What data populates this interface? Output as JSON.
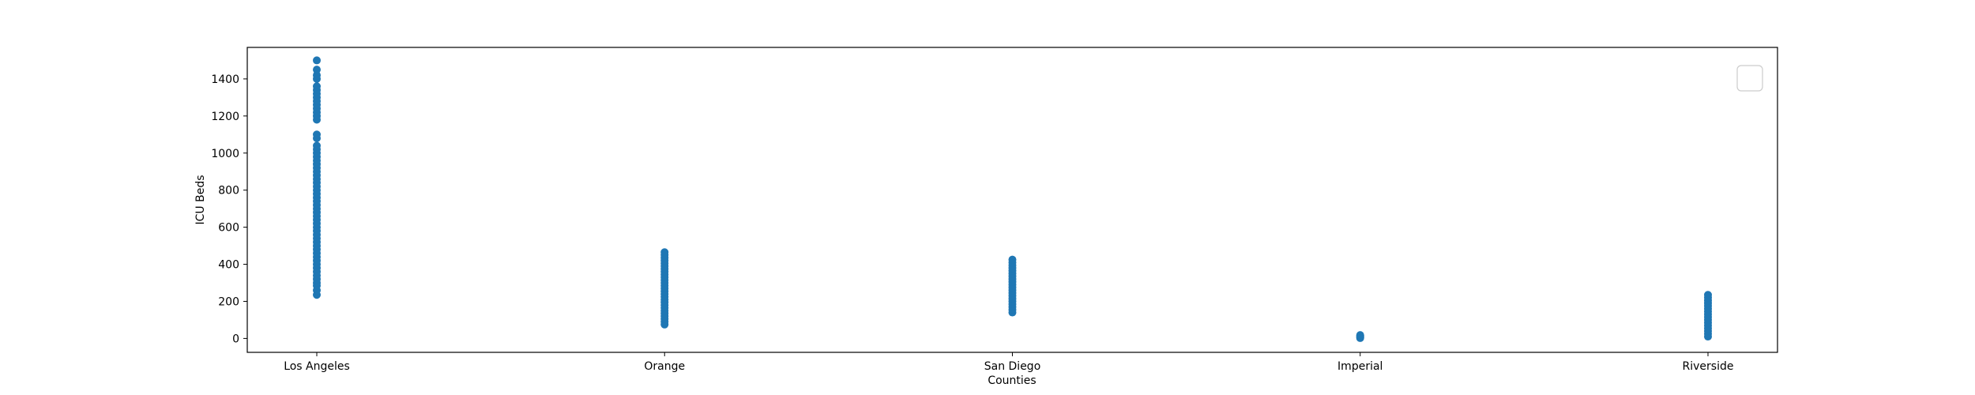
{
  "chart_data": {
    "type": "scatter",
    "xlabel": "Counties",
    "ylabel": "ICU Beds",
    "categories": [
      "Los Angeles",
      "Orange",
      "San Diego",
      "Imperial",
      "Riverside"
    ],
    "ylim": [
      -75,
      1570
    ],
    "yticks": [
      0,
      200,
      400,
      600,
      800,
      1000,
      1200,
      1400
    ],
    "grid": false,
    "legend": "top-right, empty",
    "marker_color": "#1f77b4",
    "points": [
      {
        "category": "Los Angeles",
        "values": [
          235,
          260,
          285,
          300,
          320,
          340,
          360,
          380,
          400,
          420,
          440,
          460,
          480,
          500,
          520,
          540,
          560,
          580,
          600,
          620,
          640,
          660,
          680,
          700,
          720,
          740,
          760,
          780,
          800,
          820,
          840,
          860,
          880,
          900,
          920,
          940,
          960,
          980,
          1000,
          1020,
          1040,
          1080,
          1100,
          1180,
          1200,
          1220,
          1240,
          1260,
          1280,
          1300,
          1320,
          1340,
          1360,
          1400,
          1420,
          1450,
          1500
        ]
      },
      {
        "category": "Orange",
        "values": [
          75,
          90,
          105,
          120,
          135,
          150,
          165,
          180,
          195,
          210,
          225,
          240,
          255,
          270,
          285,
          300,
          315,
          330,
          345,
          360,
          375,
          390,
          405,
          420,
          435,
          450,
          465
        ]
      },
      {
        "category": "San Diego",
        "values": [
          140,
          155,
          170,
          185,
          200,
          215,
          230,
          245,
          260,
          275,
          290,
          305,
          320,
          335,
          350,
          365,
          380,
          395,
          410,
          425
        ]
      },
      {
        "category": "Imperial",
        "values": [
          2,
          6,
          10,
          14,
          18
        ]
      },
      {
        "category": "Riverside",
        "values": [
          10,
          25,
          40,
          55,
          70,
          85,
          100,
          115,
          130,
          145,
          160,
          175,
          190,
          205,
          220,
          235
        ]
      }
    ]
  }
}
